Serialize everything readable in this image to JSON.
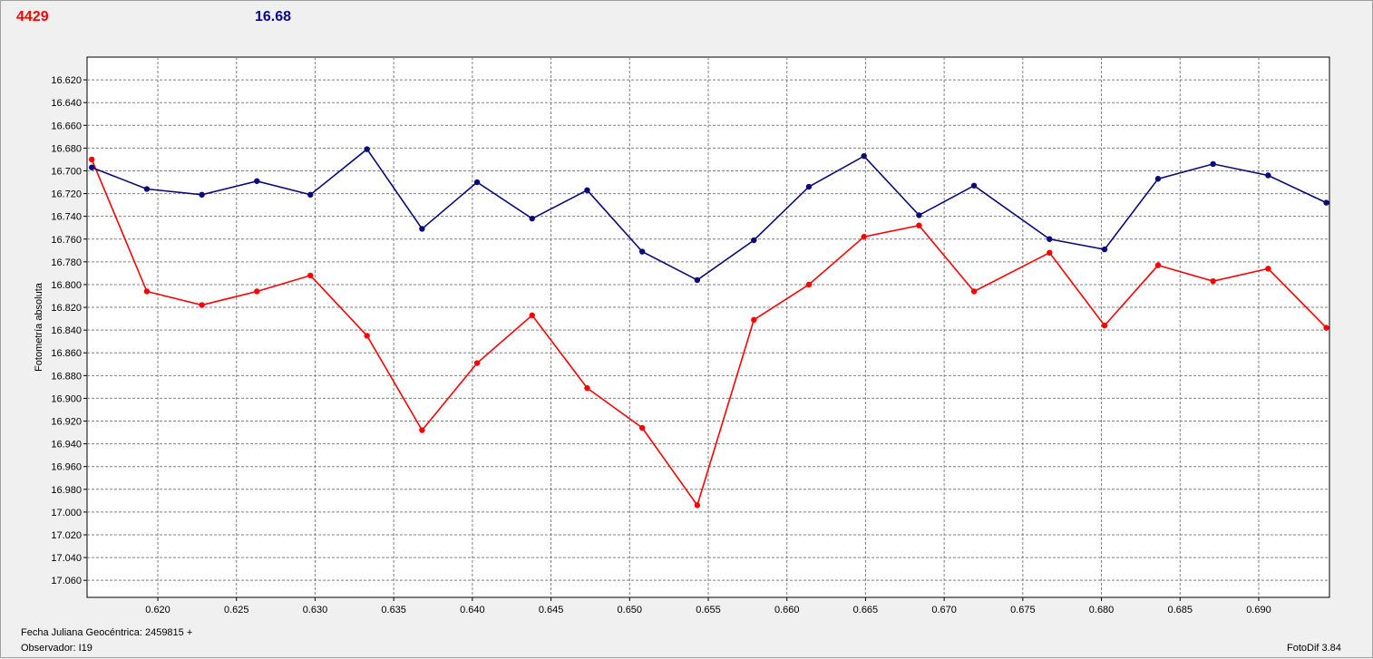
{
  "header": {
    "left_value": "4429",
    "right_value": "16.68"
  },
  "footer": {
    "julian_label": "Fecha Juliana Geocéntrica: 2459815 +",
    "observer_label": "Observador: I19",
    "version": "FotoDif 3.84"
  },
  "colors": {
    "series_red": "#ff0000",
    "series_blue": "#0a0a7a",
    "grid": "#808080"
  },
  "chart_data": {
    "type": "line",
    "title": "",
    "xlabel": "",
    "ylabel": "Fotometría absoluta",
    "xlim": [
      0.6155,
      0.6945
    ],
    "ylim": [
      16.6,
      17.075
    ],
    "y_inverted": true,
    "grid": true,
    "xticks": [
      0.62,
      0.625,
      0.63,
      0.635,
      0.64,
      0.645,
      0.65,
      0.655,
      0.66,
      0.665,
      0.67,
      0.675,
      0.68,
      0.685,
      0.69
    ],
    "xtick_labels": [
      "0.620",
      "0.625",
      "0.630",
      "0.635",
      "0.640",
      "0.645",
      "0.650",
      "0.655",
      "0.660",
      "0.665",
      "0.670",
      "0.675",
      "0.680",
      "0.685",
      "0.690"
    ],
    "yticks": [
      16.62,
      16.64,
      16.66,
      16.68,
      16.7,
      16.72,
      16.74,
      16.76,
      16.78,
      16.8,
      16.82,
      16.84,
      16.86,
      16.88,
      16.9,
      16.92,
      16.94,
      16.96,
      16.98,
      17.0,
      17.02,
      17.04,
      17.06
    ],
    "ytick_labels": [
      "16.620",
      "16.640",
      "16.660",
      "16.680",
      "16.700",
      "16.720",
      "16.740",
      "16.760",
      "16.780",
      "16.800",
      "16.820",
      "16.840",
      "16.860",
      "16.880",
      "16.900",
      "16.920",
      "16.940",
      "16.960",
      "16.980",
      "17.000",
      "17.020",
      "17.040",
      "17.060"
    ],
    "x": [
      0.6158,
      0.6193,
      0.6228,
      0.6263,
      0.6297,
      0.6333,
      0.6368,
      0.6403,
      0.6438,
      0.6473,
      0.6508,
      0.6543,
      0.6579,
      0.6614,
      0.6649,
      0.6684,
      0.6719,
      0.6767,
      0.6802,
      0.6836,
      0.6871,
      0.6906,
      0.6943
    ],
    "series": [
      {
        "color": "#ff0000",
        "values": [
          16.69,
          16.806,
          16.818,
          16.806,
          16.792,
          16.845,
          16.928,
          16.869,
          16.827,
          16.891,
          16.926,
          16.994,
          16.831,
          16.8,
          16.758,
          16.748,
          16.806,
          16.772,
          16.836,
          16.783,
          16.797,
          16.786,
          16.838
        ]
      },
      {
        "color": "#0a0a7a",
        "values": [
          16.697,
          16.716,
          16.721,
          16.709,
          16.721,
          16.681,
          16.751,
          16.71,
          16.742,
          16.717,
          16.771,
          16.796,
          16.761,
          16.714,
          16.687,
          16.739,
          16.713,
          16.76,
          16.769,
          16.707,
          16.694,
          16.704,
          16.728
        ]
      }
    ]
  }
}
